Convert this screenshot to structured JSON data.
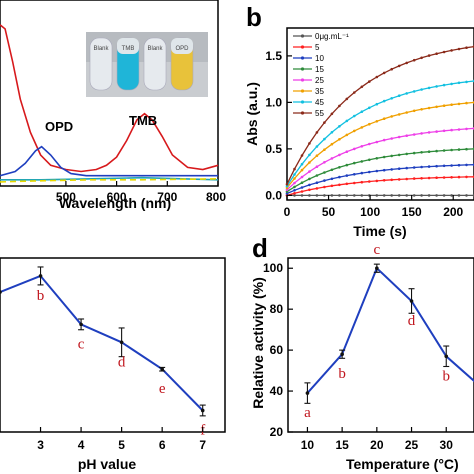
{
  "chart_data": [
    {
      "panel": "a",
      "type": "line",
      "xlabel": "Wavelength (nm)",
      "ylabel": "",
      "xlim": [
        370,
        800
      ],
      "xticks": [
        500,
        600,
        700,
        800
      ],
      "annotations": [
        "OPD",
        "TMB"
      ],
      "inset_labels": [
        "Blank",
        "TMB",
        "Blank",
        "OPD"
      ],
      "series": [
        {
          "color": "#d7191c",
          "x": [
            370,
            380,
            395,
            410,
            430,
            450,
            470,
            500,
            530,
            560,
            580,
            600,
            620,
            640,
            655,
            670,
            690,
            710,
            740,
            770,
            800
          ],
          "y": [
            0.78,
            0.76,
            0.6,
            0.42,
            0.26,
            0.15,
            0.1,
            0.08,
            0.07,
            0.08,
            0.1,
            0.14,
            0.22,
            0.32,
            0.35,
            0.32,
            0.24,
            0.15,
            0.09,
            0.08,
            0.1
          ]
        },
        {
          "color": "#1f3fbf",
          "x": [
            370,
            400,
            420,
            440,
            452,
            470,
            490,
            510,
            540,
            600,
            700,
            800
          ],
          "y": [
            0.05,
            0.07,
            0.11,
            0.17,
            0.19,
            0.15,
            0.09,
            0.06,
            0.05,
            0.05,
            0.05,
            0.05
          ]
        },
        {
          "color": "#22a6b3",
          "x": [
            370,
            450,
            550,
            650,
            800
          ],
          "y": [
            0.03,
            0.03,
            0.035,
            0.04,
            0.03
          ]
        },
        {
          "color": "#e8d800",
          "dashed": true,
          "x": [
            370,
            450,
            550,
            650,
            800
          ],
          "y": [
            0.02,
            0.025,
            0.03,
            0.03,
            0.035
          ]
        }
      ]
    },
    {
      "panel": "b",
      "type": "line",
      "xlabel": "Time (s)",
      "ylabel": "Abs (a.u.)",
      "xlim": [
        0,
        225
      ],
      "ylim": [
        -0.05,
        1.8
      ],
      "xticks": [
        0,
        50,
        100,
        150,
        200
      ],
      "yticks": [
        0.0,
        0.5,
        1.0,
        1.5
      ],
      "legend": [
        "0μg.mL⁻¹",
        "5",
        "10",
        "15",
        "25",
        "35",
        "45",
        "55"
      ],
      "series": [
        {
          "name": "0μg.mL⁻¹",
          "color": "#555555",
          "x0": 0.0,
          "x_end": 225,
          "y_end": 0.0
        },
        {
          "name": "5",
          "color": "#ff2020",
          "x0": 0.0,
          "x_end": 225,
          "y_end": 0.2
        },
        {
          "name": "10",
          "color": "#1f3fbf",
          "x0": 0.02,
          "x_end": 225,
          "y_end": 0.33
        },
        {
          "name": "15",
          "color": "#2e8b3a",
          "x0": 0.04,
          "x_end": 225,
          "y_end": 0.5
        },
        {
          "name": "25",
          "color": "#ee3fe8",
          "x0": 0.06,
          "x_end": 225,
          "y_end": 0.72
        },
        {
          "name": "35",
          "color": "#f0a000",
          "x0": 0.08,
          "x_end": 225,
          "y_end": 1.0
        },
        {
          "name": "45",
          "color": "#12c0e0",
          "x0": 0.1,
          "x_end": 225,
          "y_end": 1.23
        },
        {
          "name": "55",
          "color": "#8b2a1a",
          "x0": 0.12,
          "x_end": 225,
          "y_end": 1.6
        }
      ]
    },
    {
      "panel": "c",
      "type": "line",
      "xlabel": "pH value",
      "ylabel": "",
      "xticks": [
        3,
        4,
        5,
        6,
        7
      ],
      "color": "#1f3fbf",
      "x": [
        2,
        3,
        4,
        5,
        6,
        7
      ],
      "y": [
        88,
        97,
        70,
        60,
        45,
        22
      ],
      "err": [
        0,
        5,
        3,
        8,
        1,
        3
      ],
      "letters": [
        "",
        "b",
        "c",
        "d",
        "e",
        "f"
      ]
    },
    {
      "panel": "d",
      "type": "line",
      "xlabel": "Temperature (°C)",
      "ylabel": "Relative activity (%)",
      "ylim": [
        20,
        105
      ],
      "xticks": [
        10,
        15,
        20,
        25,
        30
      ],
      "yticks": [
        20,
        40,
        60,
        80,
        100
      ],
      "color": "#1f3fbf",
      "x": [
        10,
        15,
        20,
        25,
        30,
        35
      ],
      "y": [
        39,
        58,
        100,
        84,
        57,
        42
      ],
      "err": [
        5,
        2,
        2,
        6,
        5,
        0
      ],
      "letters": [
        "a",
        "b",
        "c",
        "d",
        "b",
        ""
      ]
    }
  ],
  "panel_labels": {
    "b": "b",
    "d": "d"
  }
}
